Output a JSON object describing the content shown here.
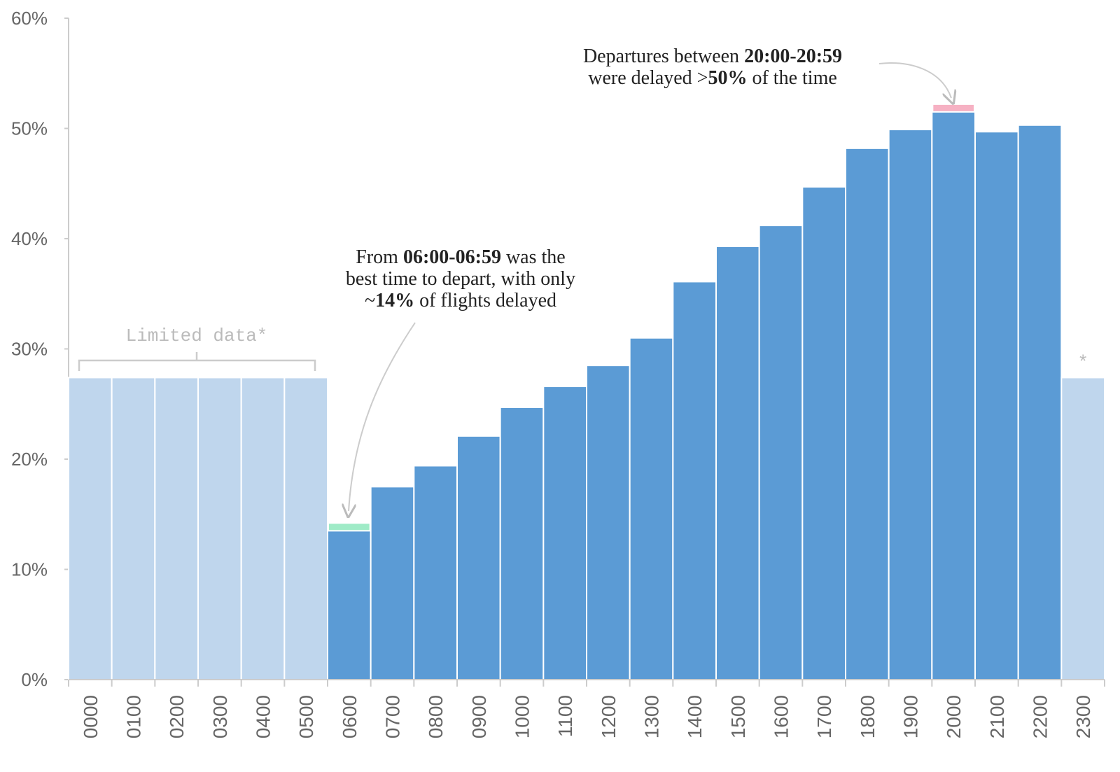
{
  "chart_data": {
    "type": "bar",
    "categories": [
      "0000",
      "0100",
      "0200",
      "0300",
      "0400",
      "0500",
      "0600",
      "0700",
      "0800",
      "0900",
      "1000",
      "1100",
      "1200",
      "1300",
      "1400",
      "1500",
      "1600",
      "1700",
      "1800",
      "1900",
      "2000",
      "2100",
      "2200",
      "2300"
    ],
    "values": [
      27.4,
      27.4,
      27.4,
      27.4,
      27.4,
      27.4,
      13.5,
      17.5,
      19.4,
      22.1,
      24.7,
      26.6,
      28.5,
      31.0,
      36.1,
      39.3,
      41.2,
      44.7,
      48.2,
      49.9,
      51.5,
      49.7,
      50.3,
      27.4
    ],
    "colors": [
      "#bfd6ed",
      "#bfd6ed",
      "#bfd6ed",
      "#bfd6ed",
      "#bfd6ed",
      "#bfd6ed",
      "#5b9bd5",
      "#5b9bd5",
      "#5b9bd5",
      "#5b9bd5",
      "#5b9bd5",
      "#5b9bd5",
      "#5b9bd5",
      "#5b9bd5",
      "#5b9bd5",
      "#5b9bd5",
      "#5b9bd5",
      "#5b9bd5",
      "#5b9bd5",
      "#5b9bd5",
      "#5b9bd5",
      "#5b9bd5",
      "#5b9bd5",
      "#bfd6ed"
    ],
    "ylim": [
      0,
      60
    ],
    "yticks": [
      {
        "value": 0,
        "label": "0%"
      },
      {
        "value": 10,
        "label": "10%"
      },
      {
        "value": 20,
        "label": "20%"
      },
      {
        "value": 30,
        "label": "30%"
      },
      {
        "value": 40,
        "label": "40%"
      },
      {
        "value": 50,
        "label": "50%"
      },
      {
        "value": 60,
        "label": "60%"
      }
    ],
    "limited_label": "Limited data*",
    "limited_mark": "*",
    "annotations": [
      {
        "target": "0600",
        "highlight": "#8ee8bd",
        "lines": [
          [
            {
              "text": "From ",
              "bold": false
            },
            {
              "text": "06:00-06:59",
              "bold": true
            },
            {
              "text": " was the",
              "bold": false
            }
          ],
          [
            {
              "text": "best time to depart, with only",
              "bold": false
            }
          ],
          [
            {
              "text": "~",
              "bold": false
            },
            {
              "text": "14%",
              "bold": true
            },
            {
              "text": " of flights delayed",
              "bold": false
            }
          ]
        ]
      },
      {
        "target": "2000",
        "highlight": "#f4a3b8",
        "lines": [
          [
            {
              "text": "Departures between ",
              "bold": false
            },
            {
              "text": "20:00-20:59",
              "bold": true
            }
          ],
          [
            {
              "text": "were delayed >",
              "bold": false
            },
            {
              "text": "50%",
              "bold": true
            },
            {
              "text": " of the time",
              "bold": false
            }
          ]
        ]
      }
    ]
  }
}
